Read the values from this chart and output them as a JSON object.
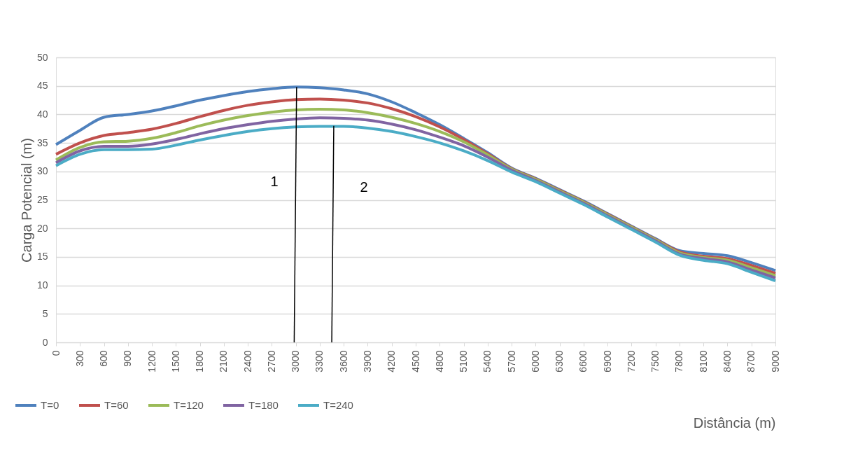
{
  "chart_data": {
    "type": "line",
    "xlabel": "Distância (m)",
    "ylabel": "Carga Potencial (m)",
    "x": [
      0,
      300,
      600,
      900,
      1200,
      1500,
      1800,
      2100,
      2400,
      2700,
      3000,
      3300,
      3600,
      3900,
      4200,
      4500,
      4800,
      5100,
      5400,
      5700,
      6000,
      6300,
      6600,
      6900,
      7200,
      7500,
      7800,
      8100,
      8400,
      8700,
      9000
    ],
    "xlim": [
      0,
      9000
    ],
    "xticks": [
      0,
      300,
      600,
      900,
      1200,
      1500,
      1800,
      2100,
      2400,
      2700,
      3000,
      3300,
      3600,
      3900,
      4200,
      4500,
      4800,
      5100,
      5400,
      5700,
      6000,
      6300,
      6600,
      6900,
      7200,
      7500,
      7800,
      8100,
      8400,
      8700,
      9000
    ],
    "ylim": [
      0,
      50
    ],
    "yticks": [
      0,
      5,
      10,
      15,
      20,
      25,
      30,
      35,
      40,
      45,
      50
    ],
    "grid": "y",
    "legend": "bottom",
    "marker": "none",
    "line_style": "solid",
    "series": [
      {
        "name": "T=0",
        "color": "#4f81bd",
        "values": [
          34.7,
          37.2,
          39.5,
          40.0,
          40.6,
          41.5,
          42.5,
          43.3,
          44.0,
          44.5,
          44.8,
          44.7,
          44.3,
          43.6,
          42.2,
          40.3,
          38.2,
          35.8,
          33.3,
          30.6,
          28.8,
          26.8,
          24.8,
          22.6,
          20.4,
          18.2,
          16.1,
          15.6,
          15.2,
          14.0,
          12.6
        ]
      },
      {
        "name": "T=60",
        "color": "#c0504d",
        "values": [
          33.0,
          35.0,
          36.3,
          36.8,
          37.4,
          38.4,
          39.6,
          40.7,
          41.6,
          42.2,
          42.6,
          42.7,
          42.5,
          42.0,
          41.0,
          39.6,
          37.8,
          35.6,
          33.1,
          30.5,
          28.7,
          26.7,
          24.7,
          22.5,
          20.3,
          18.1,
          15.9,
          15.1,
          14.7,
          13.5,
          12.1
        ]
      },
      {
        "name": "T=120",
        "color": "#9bbb59",
        "values": [
          32.0,
          34.2,
          35.2,
          35.3,
          35.8,
          36.8,
          38.0,
          39.0,
          39.8,
          40.4,
          40.8,
          40.9,
          40.8,
          40.3,
          39.5,
          38.4,
          37.0,
          35.2,
          32.9,
          30.4,
          28.6,
          26.6,
          24.6,
          22.4,
          20.2,
          18.0,
          15.7,
          14.9,
          14.4,
          13.1,
          11.7
        ]
      },
      {
        "name": "T=180",
        "color": "#8064a2",
        "values": [
          31.5,
          33.6,
          34.4,
          34.4,
          34.8,
          35.6,
          36.6,
          37.5,
          38.2,
          38.8,
          39.2,
          39.4,
          39.3,
          39.0,
          38.3,
          37.3,
          36.0,
          34.5,
          32.5,
          30.2,
          28.4,
          26.4,
          24.4,
          22.2,
          20.0,
          17.8,
          15.5,
          14.7,
          14.1,
          12.7,
          11.3
        ]
      },
      {
        "name": "T=240",
        "color": "#4bacc6",
        "values": [
          31.0,
          33.0,
          33.8,
          33.8,
          33.9,
          34.6,
          35.5,
          36.3,
          37.0,
          37.5,
          37.8,
          37.9,
          37.9,
          37.6,
          37.0,
          36.1,
          35.0,
          33.6,
          31.9,
          29.9,
          28.2,
          26.2,
          24.2,
          22.0,
          19.8,
          17.6,
          15.3,
          14.4,
          13.8,
          12.3,
          10.8
        ]
      },
      {
        "type": "line",
        "color": "#000000",
        "x": [
          2980,
          3010
        ],
        "values": [
          0,
          44.8
        ]
      },
      {
        "type": "line",
        "color": "#000000",
        "x": [
          3450,
          3475
        ],
        "values": [
          0,
          38.0
        ]
      }
    ],
    "annotations": [
      "1",
      "2"
    ]
  }
}
